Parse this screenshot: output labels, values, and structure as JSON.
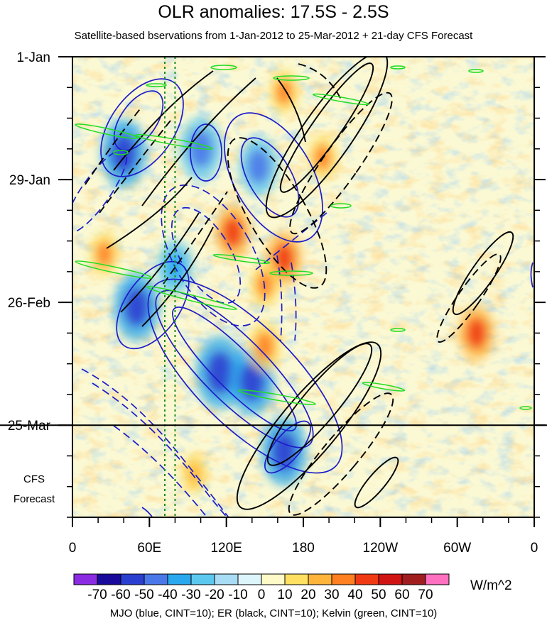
{
  "chart_data": {
    "type": "heatmap",
    "title": "OLR anomalies: 17.5S - 2.5S",
    "subtitle": "Satellite-based bservations from 1-Jan-2012 to 25-Mar-2012 + 21-day CFS Forecast",
    "x_tick_labels": [
      "0",
      "60E",
      "120E",
      "180",
      "120W",
      "60W",
      "0"
    ],
    "x_tick_lon": [
      0,
      60,
      120,
      180,
      240,
      300,
      360
    ],
    "xlim": [
      0,
      360
    ],
    "y_tick_labels": [
      "1-Jan",
      "29-Jan",
      "26-Feb",
      "25-Mar"
    ],
    "y_tick_day": [
      0,
      28,
      56,
      84
    ],
    "ylim": [
      0,
      105
    ],
    "forecast_start_day": 84,
    "forecast_label": [
      "CFS",
      "Forecast"
    ],
    "colorbar": {
      "levels": [
        -70,
        -60,
        -50,
        -40,
        -30,
        -20,
        -10,
        0,
        10,
        20,
        30,
        40,
        50,
        60,
        70
      ],
      "colors": [
        "#8b2be2",
        "#1a0a9c",
        "#2a3fd0",
        "#4a78e8",
        "#2aa8ee",
        "#5cc8f0",
        "#a8dcf4",
        "#dcf4fc",
        "#fffac8",
        "#ffe060",
        "#ffb43a",
        "#ff8020",
        "#f03a14",
        "#d01414",
        "#a01e1e",
        "#ff70c0"
      ],
      "units": "W/m^2"
    },
    "contour_caption": "MJO (blue, CINT=10); ER (black, CINT=10); Kelvin (green, CINT=10)",
    "series_colors": {
      "mjo": "#1c1cc8",
      "er": "#000000",
      "kelvin": "#22dd22",
      "reference_lines": "#1f8c1f"
    },
    "reference_lines_lon": [
      72,
      80
    ],
    "anomaly_features": [
      {
        "lon": 40,
        "day": 22,
        "value": -55
      },
      {
        "lon": 100,
        "day": 21,
        "value": -50
      },
      {
        "lon": 145,
        "day": 25,
        "value": -45
      },
      {
        "lon": 50,
        "day": 57,
        "value": -55
      },
      {
        "lon": 80,
        "day": 48,
        "value": -40
      },
      {
        "lon": 115,
        "day": 72,
        "value": -60
      },
      {
        "lon": 140,
        "day": 74,
        "value": -55
      },
      {
        "lon": 165,
        "day": 90,
        "value": -55
      },
      {
        "lon": 125,
        "day": 40,
        "value": 40
      },
      {
        "lon": 165,
        "day": 46,
        "value": 40
      },
      {
        "lon": 195,
        "day": 23,
        "value": 30
      },
      {
        "lon": 150,
        "day": 66,
        "value": 35
      },
      {
        "lon": 165,
        "day": 8,
        "value": 30
      },
      {
        "lon": 25,
        "day": 45,
        "value": 30
      },
      {
        "lon": 95,
        "day": 95,
        "value": 25
      },
      {
        "lon": 315,
        "day": 63,
        "value": 40
      },
      {
        "lon": 150,
        "day": 52,
        "value": 30
      }
    ]
  }
}
